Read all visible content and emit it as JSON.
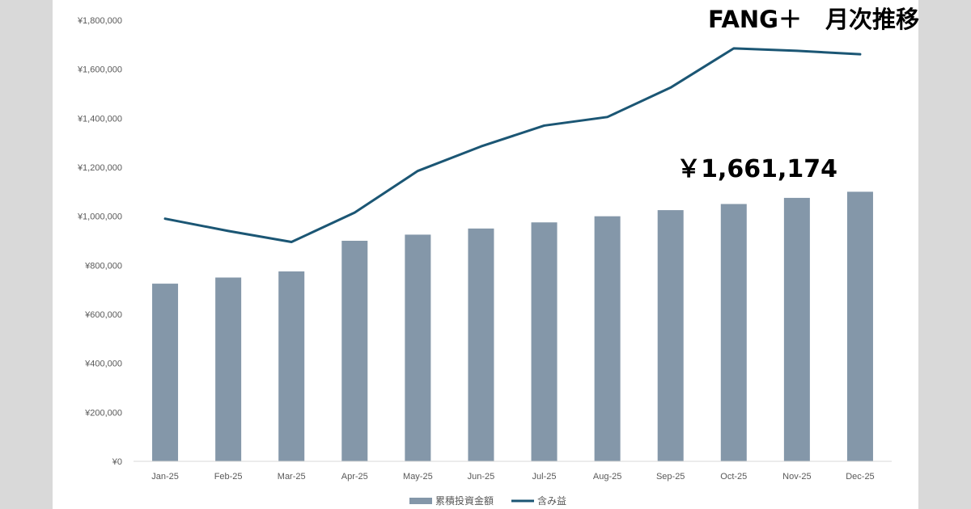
{
  "chart_data": {
    "type": "bar",
    "title": "FANG＋　月次推移",
    "annotation": "￥1,661,174",
    "categories": [
      "Jan-25",
      "Feb-25",
      "Mar-25",
      "Apr-25",
      "May-25",
      "Jun-25",
      "Jul-25",
      "Aug-25",
      "Sep-25",
      "Oct-25",
      "Nov-25",
      "Dec-25"
    ],
    "yticks": [
      "¥0",
      "¥200,000",
      "¥400,000",
      "¥600,000",
      "¥800,000",
      "¥1,000,000",
      "¥1,200,000",
      "¥1,400,000",
      "¥1,600,000",
      "¥1,800,000"
    ],
    "ylim": [
      0,
      1800000
    ],
    "grid": false,
    "legend_position": "bottom",
    "series": [
      {
        "name": "累積投資金額",
        "type": "bar",
        "color": "#8497a9",
        "values": [
          725000,
          750000,
          775000,
          900000,
          925000,
          950000,
          975000,
          1000000,
          1025000,
          1050000,
          1075000,
          1100000
        ]
      },
      {
        "name": "含み益",
        "type": "line",
        "color": "#1b5674",
        "values": [
          990000,
          940000,
          895000,
          1015000,
          1185000,
          1285000,
          1370000,
          1405000,
          1525000,
          1685000,
          1675000,
          1661174
        ]
      }
    ]
  }
}
